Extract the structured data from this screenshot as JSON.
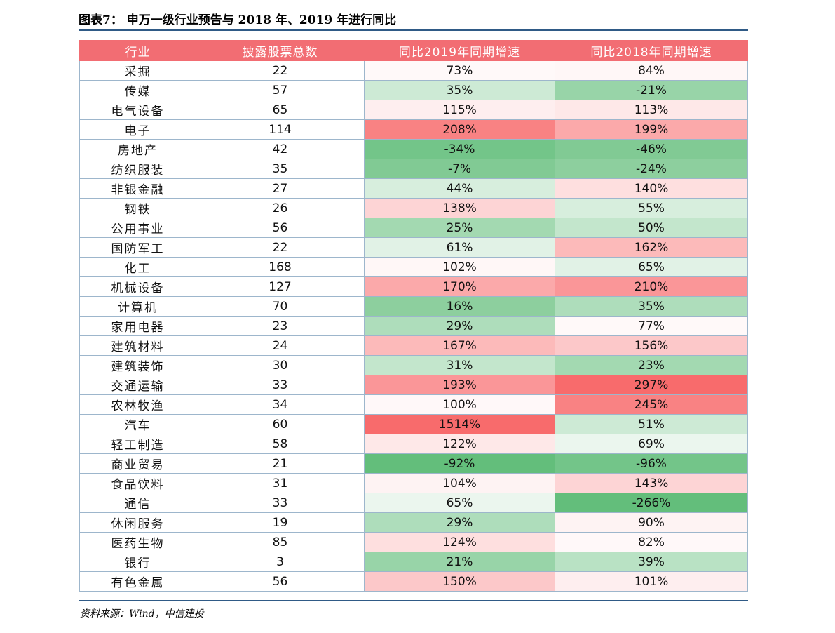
{
  "title": "图表7：   申万一级行业预告与 2018 年、2019 年进行同比",
  "source": "资料来源：Wind，中信建投",
  "table": {
    "headers": [
      "行业",
      "披露股票总数",
      "同比2019年同期增速",
      "同比2018年同期增速"
    ],
    "rows": [
      {
        "industry": "采掘",
        "count": "22",
        "yoy2019": "73%",
        "yoy2018": "84%"
      },
      {
        "industry": "传媒",
        "count": "57",
        "yoy2019": "35%",
        "yoy2018": "-21%"
      },
      {
        "industry": "电气设备",
        "count": "65",
        "yoy2019": "115%",
        "yoy2018": "113%"
      },
      {
        "industry": "电子",
        "count": "114",
        "yoy2019": "208%",
        "yoy2018": "199%"
      },
      {
        "industry": "房地产",
        "count": "42",
        "yoy2019": "-34%",
        "yoy2018": "-46%"
      },
      {
        "industry": "纺织服装",
        "count": "35",
        "yoy2019": "-7%",
        "yoy2018": "-24%"
      },
      {
        "industry": "非银金融",
        "count": "27",
        "yoy2019": "44%",
        "yoy2018": "140%"
      },
      {
        "industry": "钢铁",
        "count": "26",
        "yoy2019": "138%",
        "yoy2018": "55%"
      },
      {
        "industry": "公用事业",
        "count": "56",
        "yoy2019": "25%",
        "yoy2018": "50%"
      },
      {
        "industry": "国防军工",
        "count": "22",
        "yoy2019": "61%",
        "yoy2018": "162%"
      },
      {
        "industry": "化工",
        "count": "168",
        "yoy2019": "102%",
        "yoy2018": "65%"
      },
      {
        "industry": "机械设备",
        "count": "127",
        "yoy2019": "170%",
        "yoy2018": "210%"
      },
      {
        "industry": "计算机",
        "count": "70",
        "yoy2019": "16%",
        "yoy2018": "35%"
      },
      {
        "industry": "家用电器",
        "count": "23",
        "yoy2019": "29%",
        "yoy2018": "77%"
      },
      {
        "industry": "建筑材料",
        "count": "24",
        "yoy2019": "167%",
        "yoy2018": "156%"
      },
      {
        "industry": "建筑装饰",
        "count": "30",
        "yoy2019": "31%",
        "yoy2018": "23%"
      },
      {
        "industry": "交通运输",
        "count": "33",
        "yoy2019": "193%",
        "yoy2018": "297%"
      },
      {
        "industry": "农林牧渔",
        "count": "34",
        "yoy2019": "100%",
        "yoy2018": "245%"
      },
      {
        "industry": "汽车",
        "count": "60",
        "yoy2019": "1514%",
        "yoy2018": "51%"
      },
      {
        "industry": "轻工制造",
        "count": "58",
        "yoy2019": "122%",
        "yoy2018": "69%"
      },
      {
        "industry": "商业贸易",
        "count": "21",
        "yoy2019": "-92%",
        "yoy2018": "-96%"
      },
      {
        "industry": "食品饮料",
        "count": "31",
        "yoy2019": "104%",
        "yoy2018": "143%"
      },
      {
        "industry": "通信",
        "count": "33",
        "yoy2019": "65%",
        "yoy2018": "-266%"
      },
      {
        "industry": "休闲服务",
        "count": "19",
        "yoy2019": "29%",
        "yoy2018": "90%"
      },
      {
        "industry": "医药生物",
        "count": "85",
        "yoy2019": "124%",
        "yoy2018": "82%"
      },
      {
        "industry": "银行",
        "count": "3",
        "yoy2019": "21%",
        "yoy2018": "39%"
      },
      {
        "industry": "有色金属",
        "count": "56",
        "yoy2019": "150%",
        "yoy2018": "101%"
      }
    ]
  },
  "colors": {
    "header_bg": "#f26d73",
    "title_rule": "#2f5a86",
    "heat_green_strong": "#63be7b",
    "heat_red_strong": "#f8696b",
    "heat_neutral": "#ffffff"
  }
}
